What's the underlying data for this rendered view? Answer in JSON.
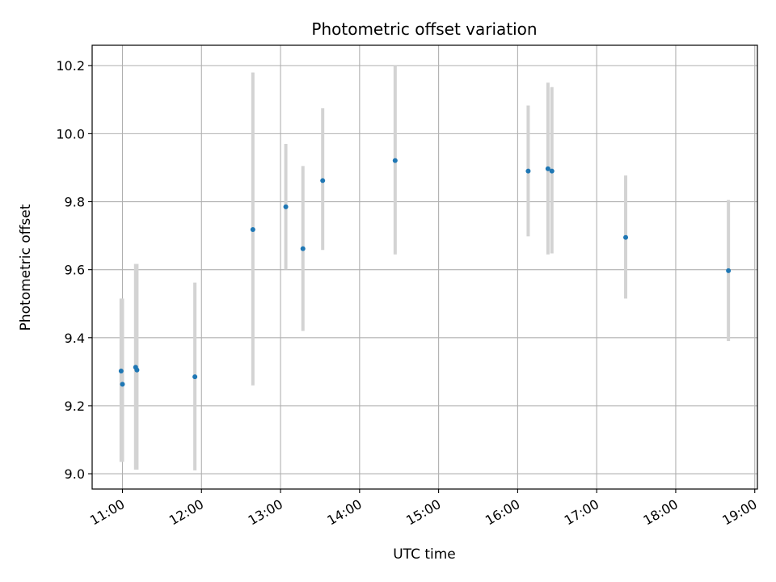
{
  "chart_data": {
    "type": "scatter",
    "title": "Photometric offset variation",
    "xlabel": "UTC time",
    "ylabel": "Photometric offset",
    "x_ticks": [
      "11:00",
      "12:00",
      "13:00",
      "14:00",
      "15:00",
      "16:00",
      "17:00",
      "18:00",
      "19:00"
    ],
    "y_ticks": [
      "9.0",
      "9.2",
      "9.4",
      "9.6",
      "9.8",
      "10.0",
      "10.2"
    ],
    "xlim": [
      "10:37",
      "19:02"
    ],
    "ylim": [
      8.955,
      10.26
    ],
    "grid": true,
    "error_bar_color": "#d3d3d3",
    "point_color": "#1f77b4",
    "points": [
      {
        "time": "10:59",
        "y": 9.302,
        "err_low": 9.035,
        "err_high": 9.515
      },
      {
        "time": "11:00",
        "y": 9.263,
        "err_low": 9.035,
        "err_high": 9.515
      },
      {
        "time": "11:10",
        "y": 9.313,
        "err_low": 9.012,
        "err_high": 9.617
      },
      {
        "time": "11:11",
        "y": 9.305,
        "err_low": 9.012,
        "err_high": 9.617
      },
      {
        "time": "11:55",
        "y": 9.285,
        "err_low": 9.01,
        "err_high": 9.562
      },
      {
        "time": "12:39",
        "y": 9.718,
        "err_low": 9.26,
        "err_high": 10.18
      },
      {
        "time": "13:04",
        "y": 9.785,
        "err_low": 9.6,
        "err_high": 9.97
      },
      {
        "time": "13:17",
        "y": 9.662,
        "err_low": 9.42,
        "err_high": 9.905
      },
      {
        "time": "13:32",
        "y": 9.862,
        "err_low": 9.658,
        "err_high": 10.075
      },
      {
        "time": "14:27",
        "y": 9.921,
        "err_low": 9.645,
        "err_high": 10.2
      },
      {
        "time": "16:08",
        "y": 9.89,
        "err_low": 9.698,
        "err_high": 10.083
      },
      {
        "time": "16:23",
        "y": 9.897,
        "err_low": 9.645,
        "err_high": 10.15
      },
      {
        "time": "16:26",
        "y": 9.89,
        "err_low": 9.648,
        "err_high": 10.137
      },
      {
        "time": "17:22",
        "y": 9.695,
        "err_low": 9.515,
        "err_high": 9.877
      },
      {
        "time": "18:40",
        "y": 9.597,
        "err_low": 9.39,
        "err_high": 9.805
      }
    ]
  }
}
